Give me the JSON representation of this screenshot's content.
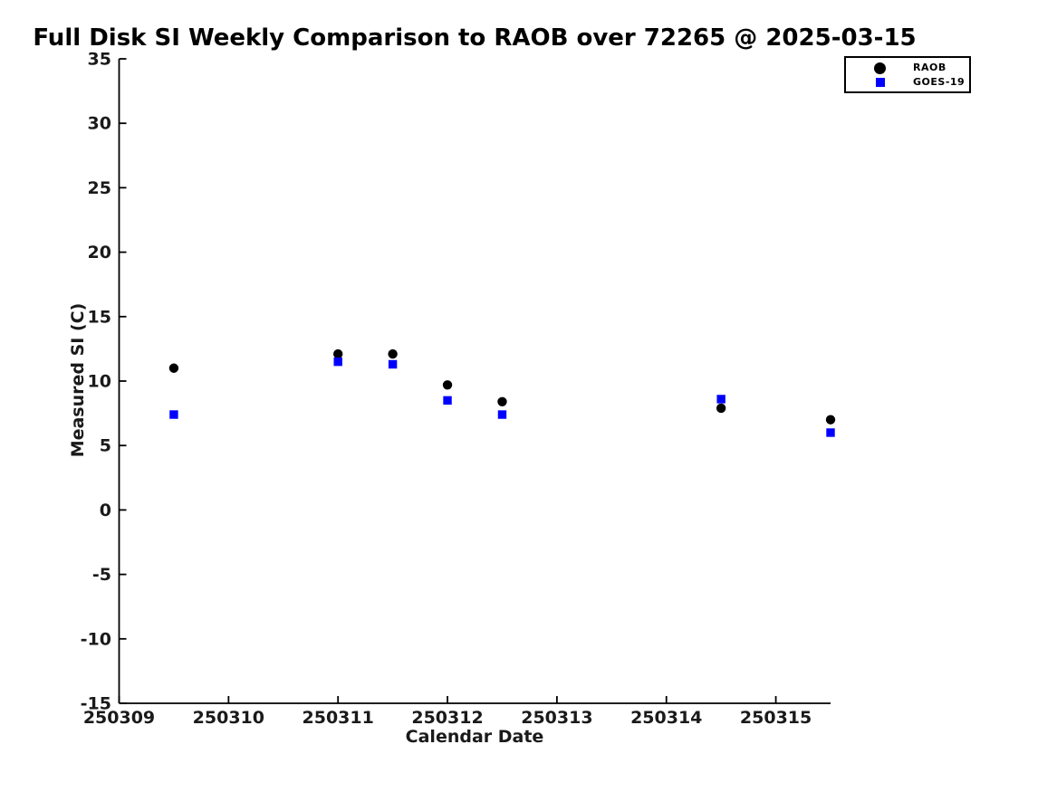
{
  "title": "Full Disk SI Weekly Comparison to RAOB over 72265 @ 2025-03-15",
  "chart_data": {
    "type": "scatter",
    "title": "Full Disk SI Weekly Comparison to RAOB over 72265 @ 2025-03-15",
    "xlabel": "Calendar Date",
    "ylabel": "Measured SI (C)",
    "xlim": [
      250309,
      250315.5
    ],
    "ylim": [
      -15,
      35
    ],
    "grid": false,
    "legend_position": "top-right",
    "xticks": [
      250309,
      250310,
      250311,
      250312,
      250313,
      250314,
      250315
    ],
    "xtick_labels": [
      "250309",
      "250310",
      "250311",
      "250312",
      "250313",
      "250314",
      "250315"
    ],
    "yticks": [
      -15,
      -10,
      -5,
      0,
      5,
      10,
      15,
      20,
      25,
      30,
      35
    ],
    "ytick_labels": [
      "-15",
      "-10",
      "-5",
      "0",
      "5",
      "10",
      "15",
      "20",
      "25",
      "30",
      "35"
    ],
    "x": [
      250309.5,
      250311,
      250311.5,
      250312,
      250312.5,
      250314.5,
      250315.5
    ],
    "series": [
      {
        "name": "RAOB",
        "marker": "circle",
        "color": "#000000",
        "values": [
          11.0,
          12.1,
          12.1,
          9.7,
          8.4,
          7.9,
          7.0
        ]
      },
      {
        "name": "GOES-19",
        "marker": "square",
        "color": "#0000ff",
        "values": [
          7.4,
          11.5,
          11.3,
          8.5,
          7.4,
          8.6,
          6.0
        ]
      }
    ],
    "axis_color": "#000000"
  }
}
